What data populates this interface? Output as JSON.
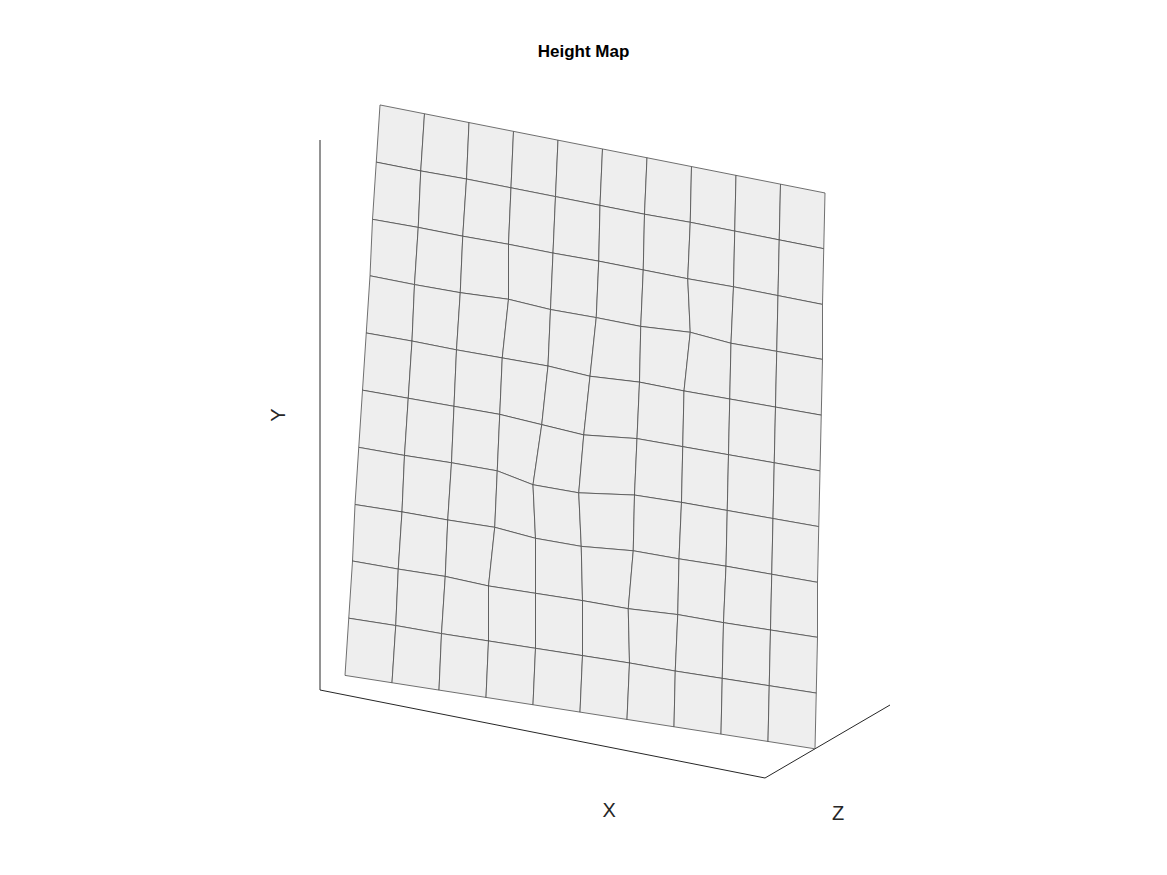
{
  "chart_data": {
    "type": "surface",
    "title": "Height Map",
    "x_label": "X",
    "y_label": "Y",
    "z_label": "Z",
    "xlim": [
      0,
      100
    ],
    "ylim": [
      0,
      100
    ],
    "zlim": [
      0,
      100
    ],
    "x": [
      0,
      10,
      20,
      30,
      40,
      50,
      60,
      70,
      80,
      90,
      100
    ],
    "y": [
      0,
      10,
      20,
      30,
      40,
      50,
      60,
      70,
      80,
      90,
      100
    ],
    "z": [
      [
        20,
        22,
        24,
        26,
        28,
        30,
        32,
        34,
        36,
        38,
        40
      ],
      [
        23,
        25,
        26,
        28,
        30,
        32,
        34,
        35,
        37,
        39,
        41
      ],
      [
        26,
        27,
        29,
        28,
        30,
        32,
        33,
        37,
        38,
        40,
        42
      ],
      [
        28,
        30,
        31,
        33,
        30,
        31,
        37,
        38,
        40,
        41,
        42
      ],
      [
        31,
        32,
        34,
        35,
        28,
        29,
        38,
        40,
        41,
        42,
        43
      ],
      [
        34,
        35,
        36,
        37,
        35,
        33,
        40,
        41,
        42,
        43,
        44
      ],
      [
        37,
        38,
        38,
        39,
        40,
        38,
        42,
        42,
        43,
        44,
        45
      ],
      [
        40,
        40,
        41,
        44,
        42,
        43,
        43,
        47,
        44,
        45,
        46
      ],
      [
        42,
        43,
        43,
        44,
        44,
        45,
        45,
        45,
        46,
        46,
        46
      ],
      [
        45,
        45,
        46,
        46,
        46,
        46,
        46,
        47,
        47,
        47,
        47
      ],
      [
        48,
        48,
        48,
        48,
        48,
        48,
        48,
        48,
        48,
        48,
        48
      ]
    ],
    "color": "#4d4d4d",
    "grid": false,
    "tick_labels": false
  }
}
